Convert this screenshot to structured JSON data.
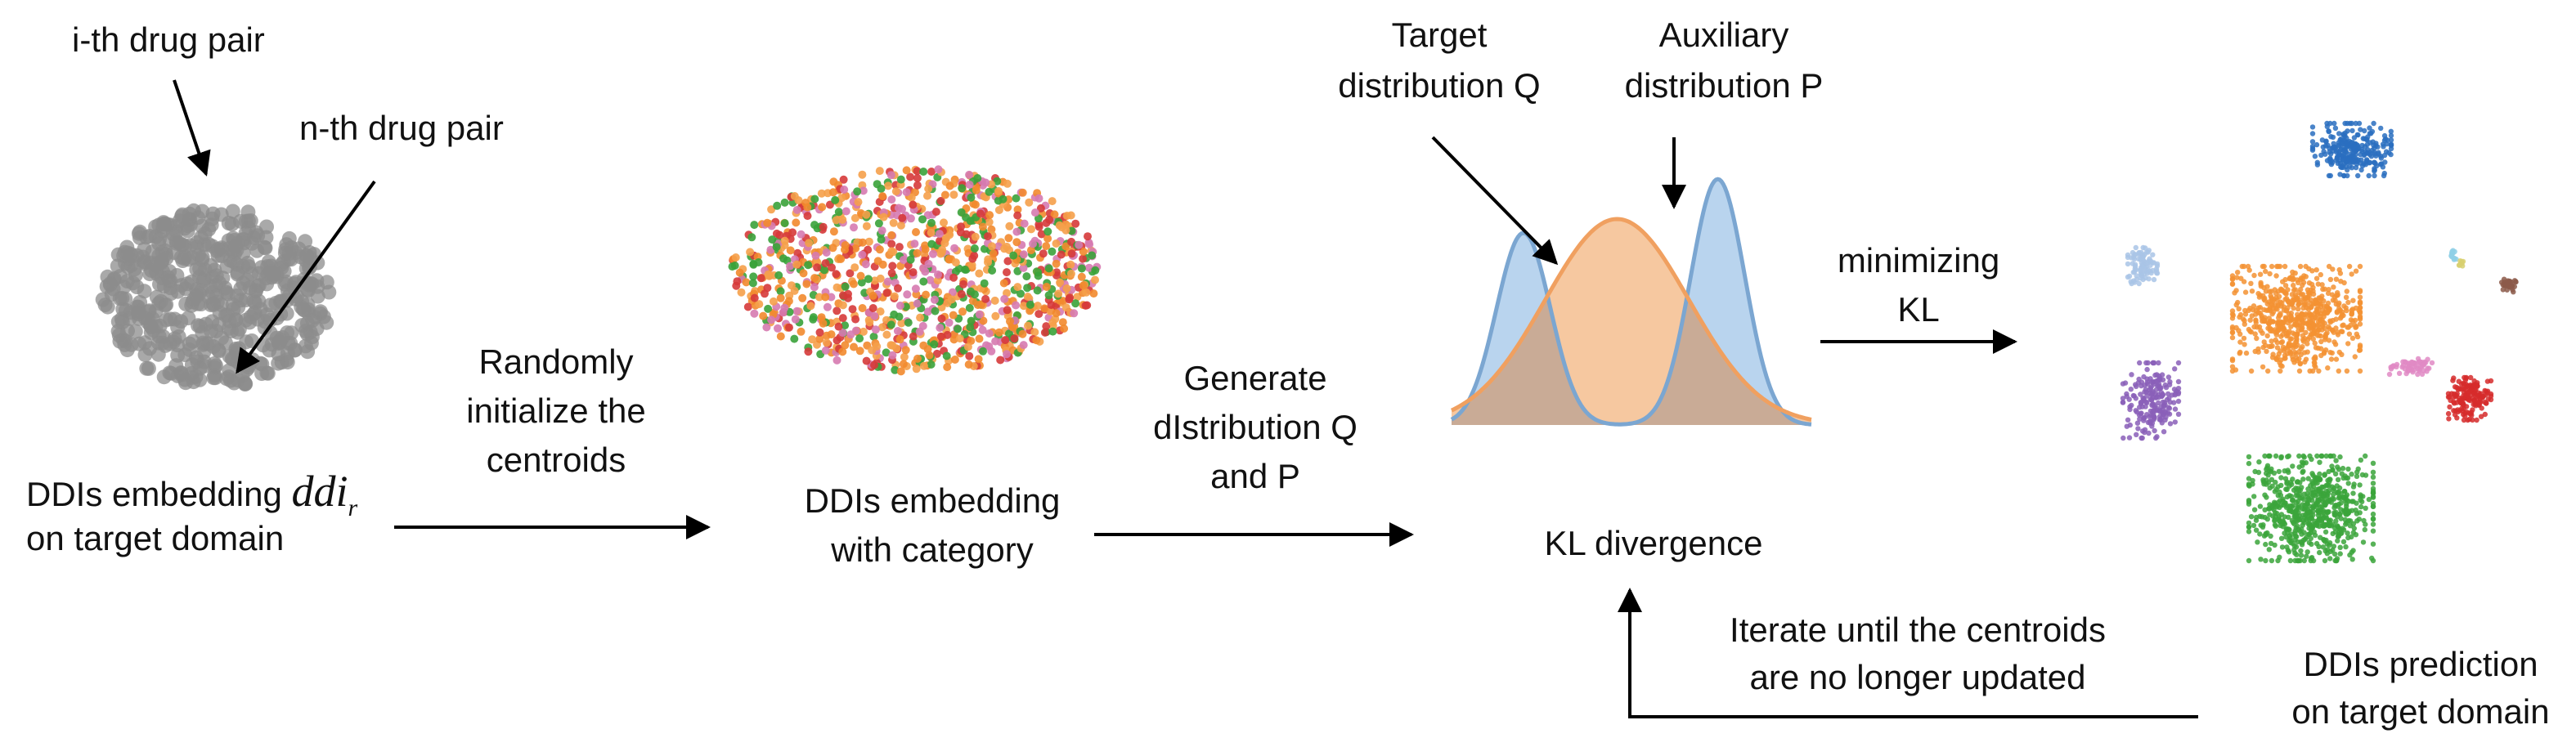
{
  "labels": {
    "ith_pair": "i-th drug pair",
    "nth_pair": "n-th drug pair",
    "embedding_line1": "DDIs embedding",
    "embedding_math": "ddi",
    "embedding_math_sub": "r",
    "embedding_line2": "on target domain",
    "random_init_1": "Randomly",
    "random_init_2": "initialize the",
    "random_init_3": "centroids",
    "category_1": "DDIs embedding",
    "category_2": "with category",
    "generate_1": "Generate",
    "generate_2": "dIstribution Q",
    "generate_3": "and P",
    "target_1": "Target",
    "target_2": "distribution Q",
    "aux_1": "Auxiliary",
    "aux_2": "distribution P",
    "minimizing_1": "minimizing",
    "minimizing_2": "KL",
    "kl_divergence": "KL divergence",
    "iterate_1": "Iterate until the centroids",
    "iterate_2": "are no longer updated",
    "prediction_1": "DDIs prediction",
    "prediction_2": "on target domain"
  },
  "colors": {
    "text": "#111111",
    "arrow": "#000000",
    "embedding_gray": "#8c8c8c",
    "category_palette": [
      "#f28a2e",
      "#3aa23a",
      "#d63a3a",
      "#d67ab0",
      "#f5a04a"
    ],
    "curve_q_fill": "#b9d4ee",
    "curve_q_stroke": "#7ba6d1",
    "curve_p_fill": "#f6c8a0",
    "curve_p_stroke": "#f0a060",
    "overlap_fill": "#c9ab96",
    "cluster_colors": {
      "blue": "#2a6fbf",
      "light_blue": "#a9c4e6",
      "orange": "#f39233",
      "purple": "#8a5fb8",
      "pink": "#e08ac4",
      "red": "#d62b2b",
      "brown": "#8c5a4a",
      "green": "#3ba53b",
      "cyan": "#8fd0e6",
      "yellow": "#d8d070"
    }
  },
  "icons": [
    "gray-embedding-cloud",
    "colored-embedding-cloud",
    "distribution-curves",
    "cluster-scatter"
  ]
}
